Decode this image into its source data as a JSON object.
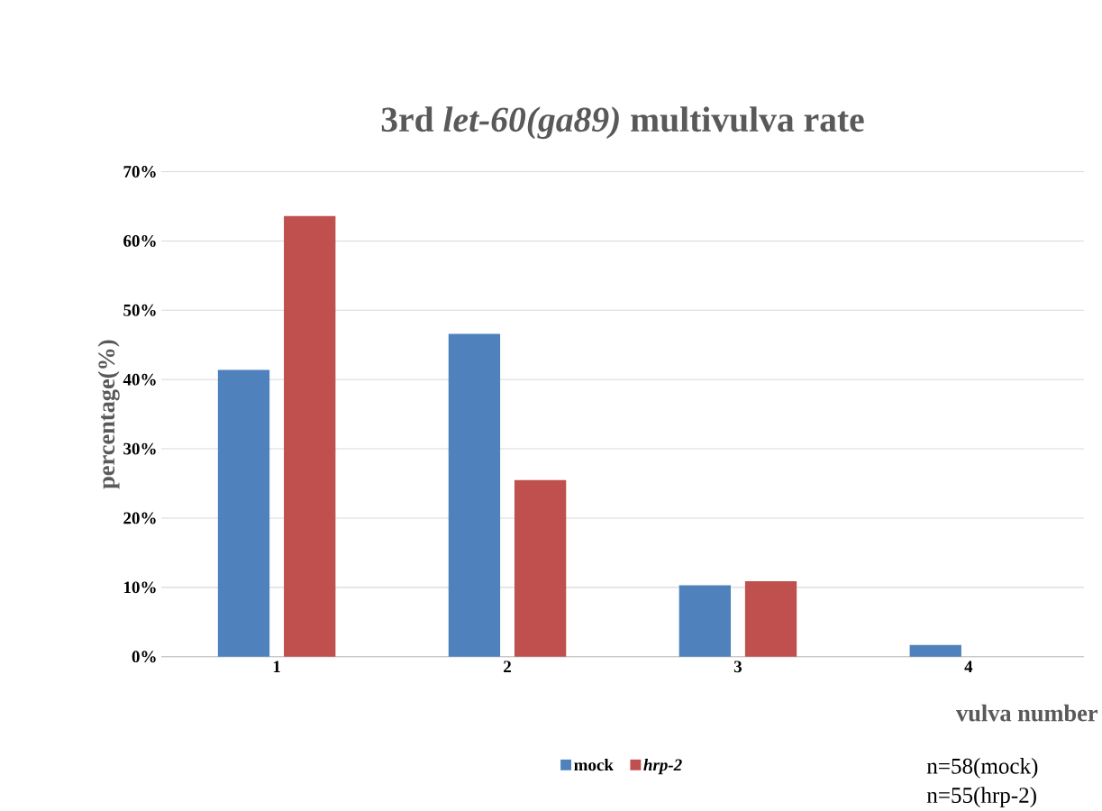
{
  "chart_data": {
    "type": "bar",
    "title": "3rd *let-60(ga89)* multivulva rate",
    "xlabel": "vulva number",
    "ylabel": "percentage(%)",
    "categories": [
      "1",
      "2",
      "3",
      "4"
    ],
    "series": [
      {
        "name": "mock",
        "color": "#4f81bd",
        "values": [
          41.4,
          46.6,
          10.3,
          1.7
        ]
      },
      {
        "name": "*hrp-2*",
        "color": "#c0504d",
        "values": [
          63.6,
          25.5,
          10.9,
          0
        ]
      }
    ],
    "ylim": [
      0,
      70
    ],
    "yticks": [
      {
        "value": 0,
        "label": "0%"
      },
      {
        "value": 10,
        "label": "10%"
      },
      {
        "value": 20,
        "label": "20%"
      },
      {
        "value": 30,
        "label": "30%"
      },
      {
        "value": 40,
        "label": "40%"
      },
      {
        "value": 50,
        "label": "50%"
      },
      {
        "value": 60,
        "label": "60%"
      },
      {
        "value": 70,
        "label": "70%"
      }
    ],
    "grid": "y",
    "legend": "bottom",
    "annotations": [
      "n=58(mock)",
      "n=55(hrp-2)"
    ]
  }
}
